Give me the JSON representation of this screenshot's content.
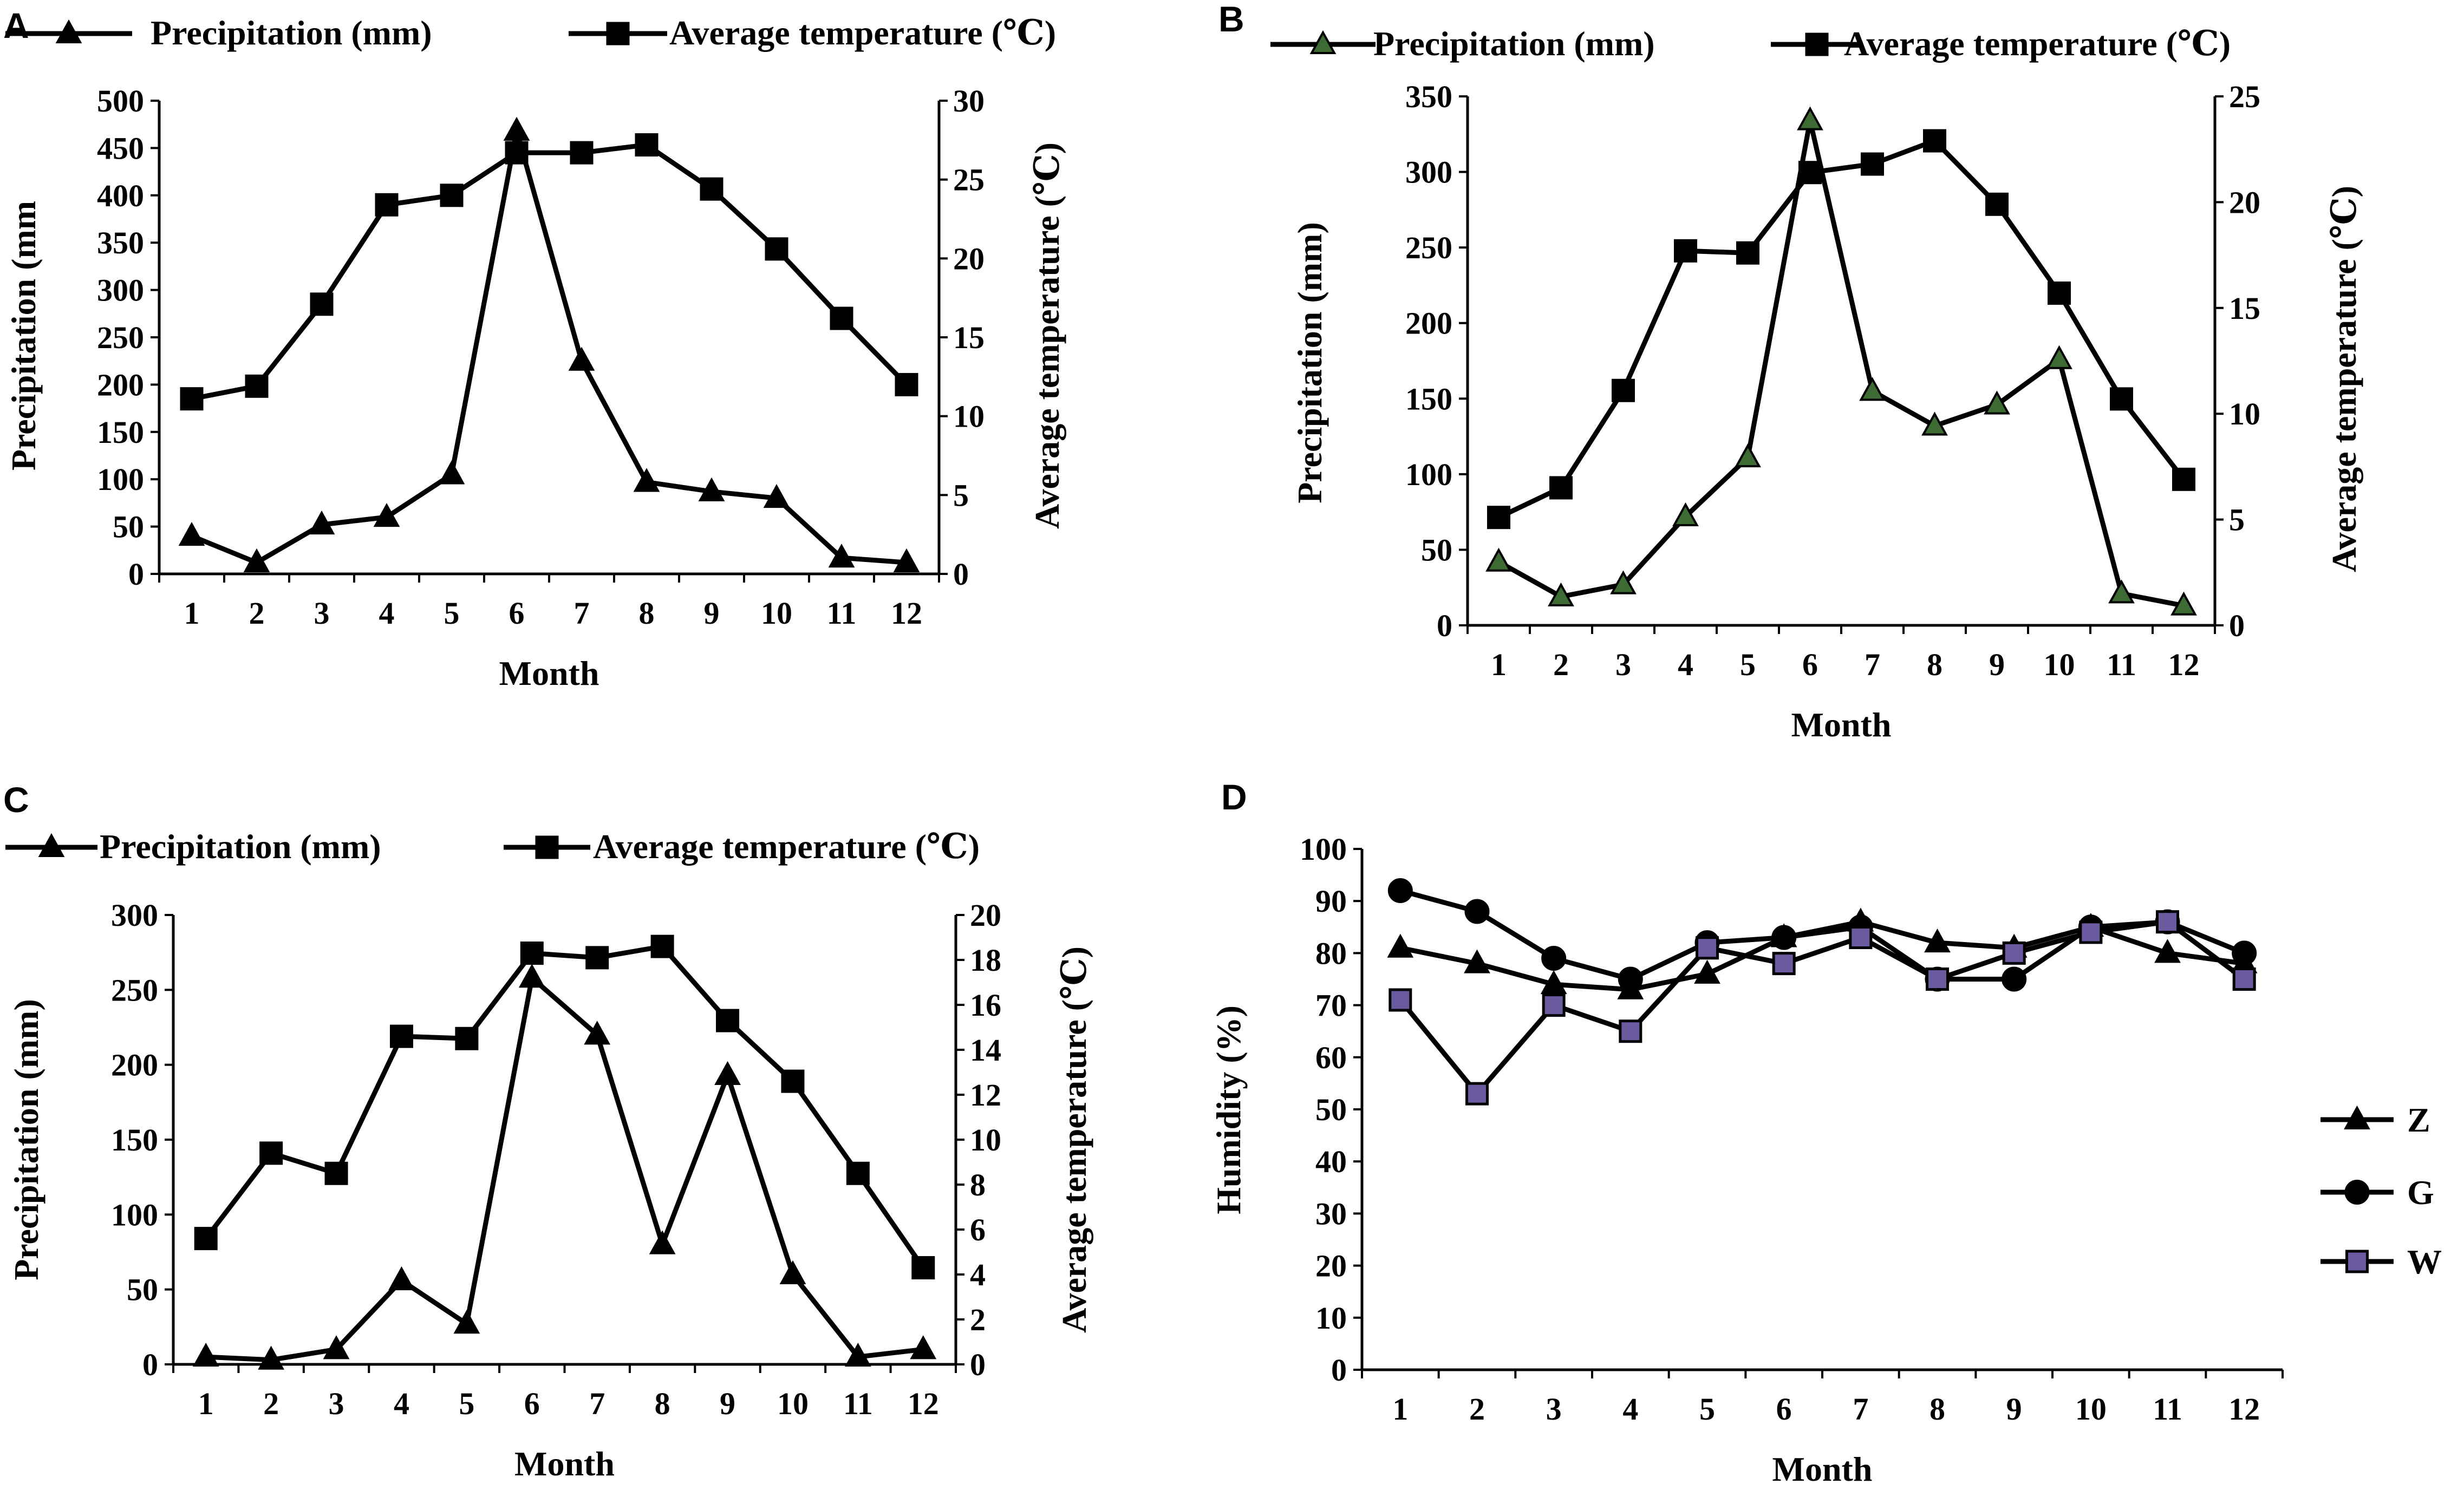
{
  "colors": {
    "ink": "#000000",
    "marker_green": "#3e6b34",
    "marker_purple": "#6c5a9e",
    "background": "#ffffff"
  },
  "chart_data": [
    {
      "id": "A",
      "panel_label": "A",
      "type": "line",
      "categories": [
        "1",
        "2",
        "3",
        "4",
        "5",
        "6",
        "7",
        "8",
        "9",
        "10",
        "11",
        "12"
      ],
      "xlabel": "Month",
      "ylabel": "Precipitation (mm",
      "y2label": "Average temperature (℃)",
      "ylim": [
        0,
        500
      ],
      "yticks": [
        "0",
        "50",
        "100",
        "150",
        "200",
        "250",
        "300",
        "350",
        "400",
        "450",
        "500"
      ],
      "y2lim": [
        0,
        30
      ],
      "y2ticks": [
        "0",
        "5",
        "10",
        "15",
        "20",
        "25",
        "30"
      ],
      "series": [
        {
          "name": "Precipitation (mm)",
          "axis": "left",
          "marker": "triangle",
          "marker_color": "ink",
          "values": [
            40,
            12,
            52,
            60,
            105,
            468,
            225,
            97,
            87,
            80,
            17,
            12
          ]
        },
        {
          "name": "Average temperature (℃)",
          "axis": "right",
          "marker": "square",
          "marker_color": "ink",
          "values": [
            11.1,
            11.9,
            17.1,
            23.4,
            24.0,
            26.7,
            26.7,
            27.2,
            24.4,
            20.6,
            16.2,
            12.0
          ]
        }
      ]
    },
    {
      "id": "B",
      "panel_label": "B",
      "type": "line",
      "categories": [
        "1",
        "2",
        "3",
        "4",
        "5",
        "6",
        "7",
        "8",
        "9",
        "10",
        "11",
        "12"
      ],
      "xlabel": "Month",
      "ylabel": "Precipitation (mm)",
      "y2label": "Average temperature (℃)",
      "ylim": [
        0,
        350
      ],
      "yticks": [
        "0",
        "50",
        "100",
        "150",
        "200",
        "250",
        "300",
        "350"
      ],
      "y2lim": [
        0,
        25
      ],
      "y2ticks": [
        "0",
        "5",
        "10",
        "15",
        "20",
        "25"
      ],
      "series": [
        {
          "name": "Precipitation (mm)",
          "axis": "left",
          "marker": "triangle",
          "marker_color": "marker_green",
          "values": [
            42,
            19,
            27,
            72,
            111,
            334,
            155,
            132,
            146,
            176,
            21,
            13
          ]
        },
        {
          "name": "Average temperature (℃)",
          "axis": "right",
          "marker": "square",
          "marker_color": "ink",
          "values": [
            5.1,
            6.5,
            11.1,
            17.7,
            17.6,
            21.4,
            21.8,
            22.9,
            19.9,
            15.7,
            10.7,
            6.9
          ]
        }
      ]
    },
    {
      "id": "C",
      "panel_label": "C",
      "type": "line",
      "categories": [
        "1",
        "2",
        "3",
        "4",
        "5",
        "6",
        "7",
        "8",
        "9",
        "10",
        "11",
        "12"
      ],
      "xlabel": "Month",
      "ylabel": "Precipitation (mm)",
      "y2label": "Average temperature (℃)",
      "ylim": [
        0,
        300
      ],
      "yticks": [
        "0",
        "50",
        "100",
        "150",
        "200",
        "250",
        "300"
      ],
      "y2lim": [
        0,
        20
      ],
      "y2ticks": [
        "0",
        "2",
        "4",
        "6",
        "8",
        "10",
        "12",
        "14",
        "16",
        "18",
        "20"
      ],
      "series": [
        {
          "name": "Precipitation (mm)",
          "axis": "left",
          "marker": "triangle",
          "marker_color": "ink",
          "values": [
            5,
            3,
            10,
            56,
            27,
            258,
            220,
            80,
            193,
            60,
            5,
            10
          ]
        },
        {
          "name": "Average temperature (℃)",
          "axis": "right",
          "marker": "square",
          "marker_color": "ink",
          "values": [
            5.6,
            9.4,
            8.5,
            14.6,
            14.5,
            18.3,
            18.1,
            18.6,
            15.3,
            12.6,
            8.5,
            4.3
          ]
        }
      ]
    },
    {
      "id": "D",
      "panel_label": "D",
      "type": "line",
      "categories": [
        "1",
        "2",
        "3",
        "4",
        "5",
        "6",
        "7",
        "8",
        "9",
        "10",
        "11",
        "12"
      ],
      "xlabel": "Month",
      "ylabel": "Humidity (%)",
      "ylim": [
        0,
        100
      ],
      "yticks": [
        "0",
        "10",
        "20",
        "30",
        "40",
        "50",
        "60",
        "70",
        "80",
        "90",
        "100"
      ],
      "legend_position": "right",
      "series": [
        {
          "name": "Z",
          "marker": "triangle",
          "marker_color": "ink",
          "values": [
            81,
            78,
            74,
            73,
            76,
            83,
            86,
            82,
            81,
            85,
            80,
            78
          ]
        },
        {
          "name": "G",
          "marker": "circle",
          "marker_color": "ink",
          "values": [
            92,
            88,
            79,
            75,
            82,
            83,
            85,
            75,
            75,
            85,
            86,
            80
          ]
        },
        {
          "name": "W",
          "marker": "square",
          "marker_color": "marker_purple",
          "values": [
            71,
            53,
            70,
            65,
            81,
            78,
            83,
            75,
            80,
            84,
            86,
            75
          ]
        }
      ]
    }
  ]
}
